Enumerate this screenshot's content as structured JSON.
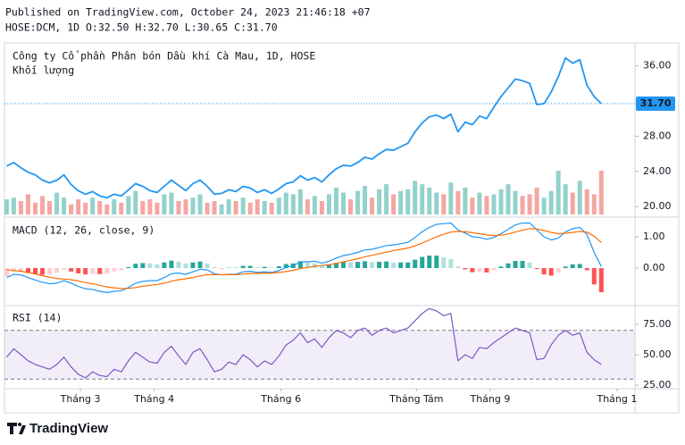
{
  "header": {
    "published": "Published on TradingView.com, October 24, 2023 21:46:18 +07",
    "symbol_line": "HOSE:DCM, 1D O:32.50 H:32.70 L:30.65 C:31.70"
  },
  "footer": {
    "brand": "TradingView"
  },
  "chart_data": [
    {
      "type": "line",
      "title": "Công ty Cổ phần Phân bón Dầu khí Cà Mau, 1D, HOSE",
      "color": "#2196f3",
      "ylim": [
        19.1,
        38.2
      ],
      "yticks": [
        {
          "value": 20,
          "label": "20.00"
        },
        {
          "value": 24,
          "label": "24.00"
        },
        {
          "value": 28,
          "label": "28.00"
        },
        {
          "value": 36,
          "label": "36.00"
        }
      ],
      "last_price": {
        "value": 31.7,
        "label": "31.70"
      },
      "values": [
        24.6,
        25.0,
        24.4,
        23.9,
        23.6,
        23.0,
        22.7,
        23.0,
        23.6,
        22.5,
        21.8,
        21.4,
        21.7,
        21.2,
        21.0,
        21.4,
        21.2,
        21.9,
        22.6,
        22.3,
        21.8,
        21.6,
        22.3,
        23.0,
        22.4,
        21.8,
        22.6,
        23.0,
        22.3,
        21.4,
        21.5,
        21.9,
        21.7,
        22.3,
        22.1,
        21.6,
        21.9,
        21.5,
        22.0,
        22.6,
        22.8,
        23.5,
        23.0,
        23.3,
        22.8,
        23.6,
        24.3,
        24.7,
        24.6,
        25.0,
        25.6,
        25.4,
        26.0,
        26.5,
        26.4,
        26.8,
        27.2,
        28.5,
        29.5,
        30.2,
        30.4,
        30.0,
        30.5,
        28.5,
        29.6,
        29.3,
        30.3,
        30.0,
        31.3,
        32.5,
        33.5,
        34.5,
        34.3,
        34.0,
        31.6,
        31.7,
        33.0,
        34.8,
        36.9,
        36.3,
        36.7,
        33.8,
        32.5,
        31.7
      ],
      "volume": {
        "label": "Khối lượng",
        "axis": "y2",
        "up_color": "#92d2cb",
        "down_color": "#f5a6a3",
        "values": [
          0.9,
          1.0,
          0.8,
          1.2,
          0.7,
          1.1,
          0.8,
          1.3,
          1.0,
          0.6,
          0.9,
          0.7,
          1.0,
          0.8,
          0.6,
          0.9,
          0.7,
          1.1,
          1.4,
          0.8,
          0.9,
          0.7,
          1.2,
          1.3,
          0.8,
          0.9,
          1.0,
          1.2,
          0.7,
          0.8,
          0.6,
          0.9,
          0.8,
          1.0,
          0.7,
          0.9,
          0.8,
          0.7,
          1.0,
          1.3,
          1.2,
          1.5,
          0.9,
          1.1,
          0.8,
          1.2,
          1.6,
          1.3,
          0.9,
          1.4,
          1.7,
          1.0,
          1.5,
          1.8,
          1.2,
          1.4,
          1.5,
          2.0,
          1.8,
          1.6,
          1.3,
          1.2,
          1.9,
          1.4,
          1.6,
          1.0,
          1.3,
          1.1,
          1.2,
          1.5,
          1.8,
          1.4,
          1.1,
          1.2,
          1.6,
          1.0,
          1.4,
          2.6,
          1.8,
          1.3,
          2.0,
          1.5,
          1.2,
          2.6
        ]
      },
      "y2lim": [
        0,
        10
      ]
    },
    {
      "type": "macd",
      "title": "MACD (12, 26, close, 9)",
      "ylim": [
        -1.14,
        1.57
      ],
      "yticks": [
        {
          "value": 0,
          "label": "0.00"
        },
        {
          "value": 1,
          "label": "1.00"
        }
      ],
      "macd": {
        "color": "#2196f3",
        "values": [
          -0.3,
          -0.2,
          -0.22,
          -0.3,
          -0.38,
          -0.45,
          -0.5,
          -0.48,
          -0.4,
          -0.48,
          -0.58,
          -0.66,
          -0.68,
          -0.74,
          -0.78,
          -0.74,
          -0.72,
          -0.62,
          -0.48,
          -0.42,
          -0.4,
          -0.4,
          -0.3,
          -0.18,
          -0.16,
          -0.2,
          -0.12,
          -0.04,
          -0.06,
          -0.18,
          -0.22,
          -0.2,
          -0.2,
          -0.12,
          -0.1,
          -0.14,
          -0.12,
          -0.14,
          -0.08,
          0.02,
          0.08,
          0.2,
          0.2,
          0.22,
          0.16,
          0.22,
          0.32,
          0.4,
          0.44,
          0.5,
          0.58,
          0.6,
          0.66,
          0.72,
          0.74,
          0.78,
          0.82,
          0.98,
          1.16,
          1.3,
          1.4,
          1.42,
          1.44,
          1.22,
          1.12,
          1.0,
          0.98,
          0.92,
          0.98,
          1.1,
          1.24,
          1.38,
          1.44,
          1.44,
          1.22,
          1.0,
          0.9,
          0.96,
          1.16,
          1.26,
          1.3,
          1.08,
          0.5,
          0.05
        ]
      },
      "signal": {
        "color": "#ff6d00",
        "values": [
          -0.05,
          -0.08,
          -0.1,
          -0.14,
          -0.19,
          -0.24,
          -0.29,
          -0.33,
          -0.35,
          -0.37,
          -0.41,
          -0.46,
          -0.5,
          -0.55,
          -0.6,
          -0.63,
          -0.65,
          -0.65,
          -0.62,
          -0.58,
          -0.55,
          -0.52,
          -0.48,
          -0.42,
          -0.37,
          -0.34,
          -0.3,
          -0.25,
          -0.21,
          -0.21,
          -0.21,
          -0.21,
          -0.21,
          -0.19,
          -0.17,
          -0.17,
          -0.16,
          -0.16,
          -0.14,
          -0.11,
          -0.07,
          -0.02,
          0.02,
          0.06,
          0.08,
          0.11,
          0.15,
          0.2,
          0.25,
          0.3,
          0.36,
          0.41,
          0.46,
          0.51,
          0.56,
          0.6,
          0.64,
          0.71,
          0.8,
          0.9,
          1.0,
          1.08,
          1.15,
          1.17,
          1.16,
          1.13,
          1.1,
          1.06,
          1.04,
          1.05,
          1.09,
          1.15,
          1.21,
          1.26,
          1.25,
          1.2,
          1.14,
          1.1,
          1.11,
          1.14,
          1.17,
          1.15,
          1.02,
          0.82
        ]
      },
      "histogram": {
        "colors": [
          "#26a69a",
          "#b2dfdb",
          "#ffcdd2",
          "#ff5252"
        ],
        "values": [
          -0.25,
          -0.12,
          -0.12,
          -0.16,
          -0.19,
          -0.21,
          -0.21,
          -0.15,
          -0.05,
          -0.11,
          -0.17,
          -0.2,
          -0.18,
          -0.19,
          -0.18,
          -0.11,
          -0.07,
          0.03,
          0.14,
          0.16,
          0.15,
          0.12,
          0.18,
          0.24,
          0.21,
          0.14,
          0.18,
          0.21,
          0.15,
          0.03,
          -0.01,
          0.01,
          0.01,
          0.07,
          0.07,
          0.03,
          0.04,
          0.02,
          0.06,
          0.13,
          0.15,
          0.22,
          0.18,
          0.16,
          0.08,
          0.11,
          0.17,
          0.2,
          0.19,
          0.2,
          0.22,
          0.19,
          0.2,
          0.21,
          0.18,
          0.18,
          0.18,
          0.27,
          0.36,
          0.4,
          0.4,
          0.34,
          0.29,
          0.05,
          -0.04,
          -0.13,
          -0.12,
          -0.14,
          -0.06,
          0.05,
          0.15,
          0.23,
          0.23,
          0.18,
          -0.03,
          -0.2,
          -0.24,
          -0.14,
          0.05,
          0.12,
          0.13,
          -0.07,
          -0.52,
          -0.77
        ]
      }
    },
    {
      "type": "rsi",
      "title": "RSI (14)",
      "color": "#7e57c2",
      "band": [
        30,
        70
      ],
      "band_color": "#7e57c2",
      "ylim": [
        24.3,
        88.2
      ],
      "yticks": [
        {
          "value": 25,
          "label": "25.00"
        },
        {
          "value": 50,
          "label": "50.00"
        },
        {
          "value": 75,
          "label": "75.00"
        }
      ],
      "values": [
        48,
        55,
        50,
        45,
        42,
        40,
        38,
        42,
        48,
        40,
        34,
        31,
        36,
        33,
        32,
        38,
        36,
        45,
        52,
        48,
        44,
        43,
        52,
        57,
        49,
        42,
        52,
        55,
        46,
        36,
        38,
        44,
        42,
        50,
        46,
        40,
        45,
        42,
        49,
        58,
        62,
        68,
        60,
        63,
        56,
        64,
        70,
        68,
        64,
        70,
        72,
        66,
        70,
        72,
        68,
        70,
        72,
        78,
        84,
        88,
        86,
        82,
        84,
        45,
        50,
        47,
        56,
        55,
        60,
        64,
        68,
        72,
        70,
        68,
        46,
        47,
        58,
        66,
        70,
        66,
        68,
        52,
        46,
        42
      ],
      "xlim": [
        -0.3,
        87.7
      ],
      "xticks": [
        {
          "value": 10.3,
          "label": "Tháng 3"
        },
        {
          "value": 20.6,
          "label": "Tháng 4"
        },
        {
          "value": 38.3,
          "label": "Tháng 6"
        },
        {
          "value": 57.2,
          "label": "Tháng Tám"
        },
        {
          "value": 67.5,
          "label": "Tháng 9"
        },
        {
          "value": 85.2,
          "label": "Tháng 1"
        }
      ]
    }
  ]
}
